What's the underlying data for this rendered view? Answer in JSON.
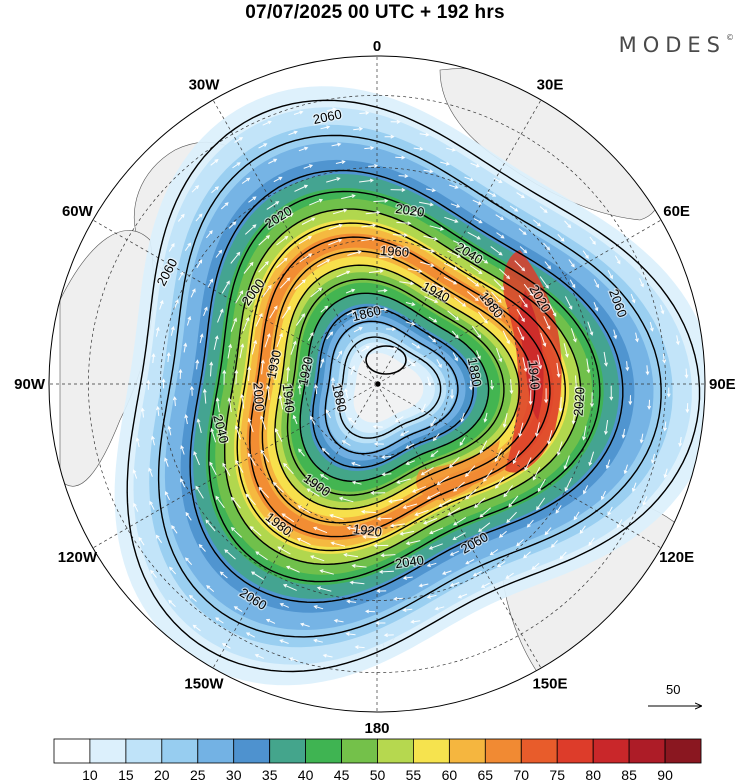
{
  "header": {
    "title": "07/07/2025  00 UTC  + 192 hrs",
    "brand": "MODES",
    "brand_mark": "©"
  },
  "meridian_labels": [
    {
      "text": "0",
      "lon": 0
    },
    {
      "text": "30E",
      "lon": 30
    },
    {
      "text": "60E",
      "lon": 60
    },
    {
      "text": "90E",
      "lon": 90
    },
    {
      "text": "120E",
      "lon": 120
    },
    {
      "text": "150E",
      "lon": 150
    },
    {
      "text": "180",
      "lon": 180
    },
    {
      "text": "150W",
      "lon": -150
    },
    {
      "text": "120W",
      "lon": -120
    },
    {
      "text": "90W",
      "lon": -90
    },
    {
      "text": "60W",
      "lon": -60
    },
    {
      "text": "30W",
      "lon": -30
    }
  ],
  "contour_labels": [
    {
      "text": "2060",
      "ang": -20,
      "frac": 0.69
    },
    {
      "text": "2020",
      "ang": 4,
      "frac": 0.51
    },
    {
      "text": "2020",
      "ang": -30,
      "frac": 0.53
    },
    {
      "text": "1940",
      "ang": -5,
      "frac": 0.39
    },
    {
      "text": "1980",
      "ang": -38,
      "frac": 0.42
    },
    {
      "text": "1880",
      "ang": -10,
      "frac": 0.24
    },
    {
      "text": "2040",
      "ang": -58,
      "frac": 0.53
    },
    {
      "text": "1940",
      "ang": -62,
      "frac": 0.36
    },
    {
      "text": "2060",
      "ang": 60,
      "frac": 0.64
    },
    {
      "text": "2040",
      "ang": 82,
      "frac": 0.59
    },
    {
      "text": "1920",
      "ang": 97,
      "frac": 0.43
    },
    {
      "text": "2020",
      "ang": -82,
      "frac": 0.55
    },
    {
      "text": "1960",
      "ang": -86,
      "frac": 0.41
    },
    {
      "text": "1860",
      "ang": -104,
      "frac": 0.21
    },
    {
      "text": "1880",
      "ang": 168,
      "frac": 0.15
    },
    {
      "text": "1900",
      "ang": 125,
      "frac": 0.31
    },
    {
      "text": "1920",
      "ang": -168,
      "frac": 0.27
    },
    {
      "text": "1940",
      "ang": 174,
      "frac": 0.32
    },
    {
      "text": "1980",
      "ang": 128,
      "frac": 0.45
    },
    {
      "text": "2060",
      "ang": 122,
      "frac": 0.65
    },
    {
      "text": "2060",
      "ang": -102,
      "frac": 0.77
    },
    {
      "text": "2020",
      "ang": -122,
      "frac": 0.55
    },
    {
      "text": "2000",
      "ang": -144,
      "frac": 0.49
    },
    {
      "text": "1930",
      "ang": -168,
      "frac": 0.38
    },
    {
      "text": "2000",
      "ang": 176,
      "frac": 0.42
    },
    {
      "text": "2040",
      "ang": 166,
      "frac": 0.53
    },
    {
      "text": "2060",
      "ang": -152,
      "frac": 0.78
    }
  ],
  "vector_ref": {
    "value": "50"
  },
  "colorbar": {
    "ticks": [
      "10",
      "15",
      "20",
      "25",
      "30",
      "35",
      "40",
      "45",
      "50",
      "55",
      "60",
      "65",
      "70",
      "75",
      "80",
      "85",
      "90"
    ],
    "colors": [
      "#ffffff",
      "#dcf0fc",
      "#bfe3f9",
      "#97cdf0",
      "#73b2e4",
      "#4e92cf",
      "#44a58c",
      "#3fb452",
      "#74c14a",
      "#b6d84f",
      "#f6e34e",
      "#f5b63f",
      "#f18a33",
      "#e85c2b",
      "#dd3c2a",
      "#c9272a",
      "#ad1c27",
      "#8a1720"
    ]
  }
}
